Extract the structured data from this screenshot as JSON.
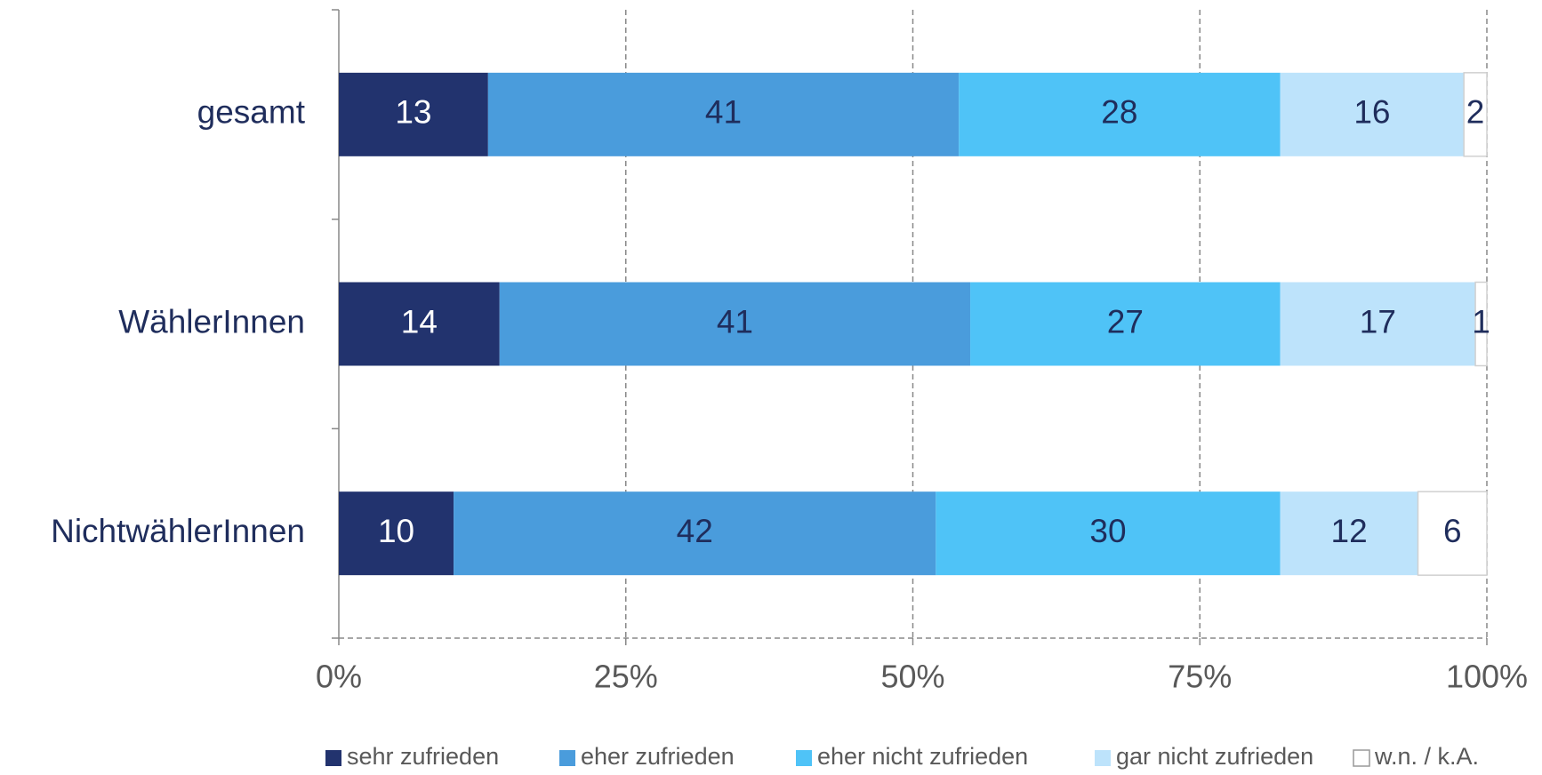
{
  "chart_data": {
    "type": "stacked_barh",
    "categories": [
      "gesamt",
      "WählerInnen",
      "NichtwählerInnen"
    ],
    "series": [
      {
        "name": "sehr zufrieden",
        "color": "#22336e",
        "values": [
          13,
          14,
          10
        ]
      },
      {
        "name": "eher zufrieden",
        "color": "#4a9cdc",
        "values": [
          41,
          41,
          42
        ]
      },
      {
        "name": "eher nicht zufrieden",
        "color": "#4fc3f7",
        "values": [
          28,
          27,
          30
        ]
      },
      {
        "name": "gar nicht zufrieden",
        "color": "#bde3fb",
        "values": [
          16,
          17,
          12
        ]
      },
      {
        "name": "w.n. / k.A.",
        "color": "#ffffff",
        "values": [
          2,
          1,
          6
        ]
      }
    ],
    "xlim": [
      0,
      100
    ],
    "xticks": [
      {
        "value": 0,
        "label": "0%"
      },
      {
        "value": 25,
        "label": "25%"
      },
      {
        "value": 50,
        "label": "50%"
      },
      {
        "value": 75,
        "label": "75%"
      },
      {
        "value": 100,
        "label": "100%"
      }
    ],
    "grid": true,
    "legend": "bottom"
  }
}
